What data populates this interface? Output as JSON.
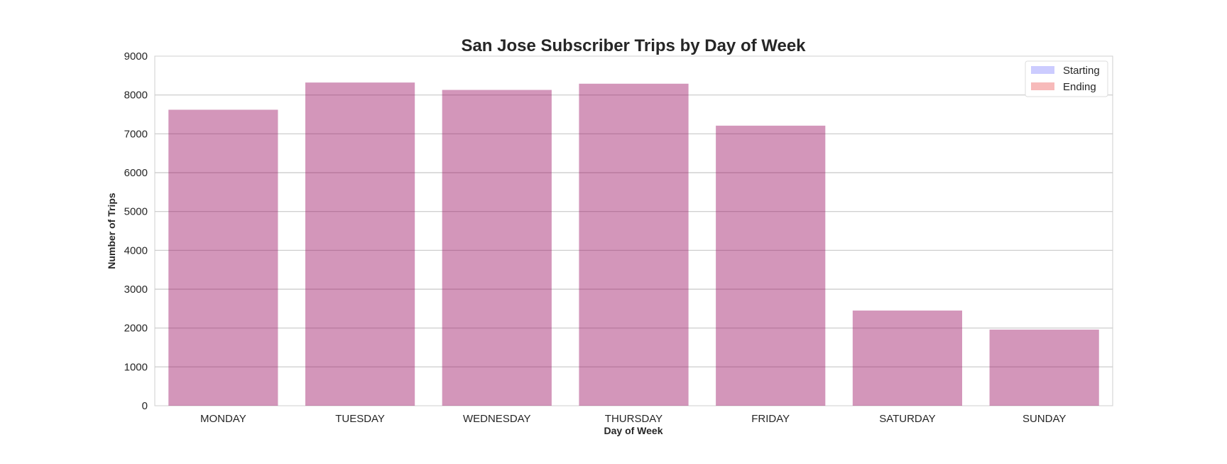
{
  "chart_data": {
    "type": "bar",
    "title": "San Jose Subscriber Trips by Day of Week",
    "xlabel": "Day of Week",
    "ylabel": "Number of Trips",
    "categories": [
      "MONDAY",
      "TUESDAY",
      "WEDNESDAY",
      "THURSDAY",
      "FRIDAY",
      "SATURDAY",
      "SUNDAY"
    ],
    "series": [
      {
        "name": "Starting",
        "color": "#0000ff",
        "opacity": 0.2,
        "values": [
          7620,
          8320,
          8130,
          8290,
          7210,
          2450,
          1960
        ]
      },
      {
        "name": "Ending",
        "color": "#e41a1c",
        "opacity": 0.3,
        "values": [
          7620,
          8320,
          8130,
          8290,
          7210,
          2450,
          1960
        ]
      }
    ],
    "ylim": [
      0,
      9000
    ],
    "yticks": [
      "0",
      "1000",
      "2000",
      "3000",
      "4000",
      "5000",
      "6000",
      "7000",
      "8000",
      "9000"
    ],
    "grid": true,
    "legend_position": "top-right"
  }
}
